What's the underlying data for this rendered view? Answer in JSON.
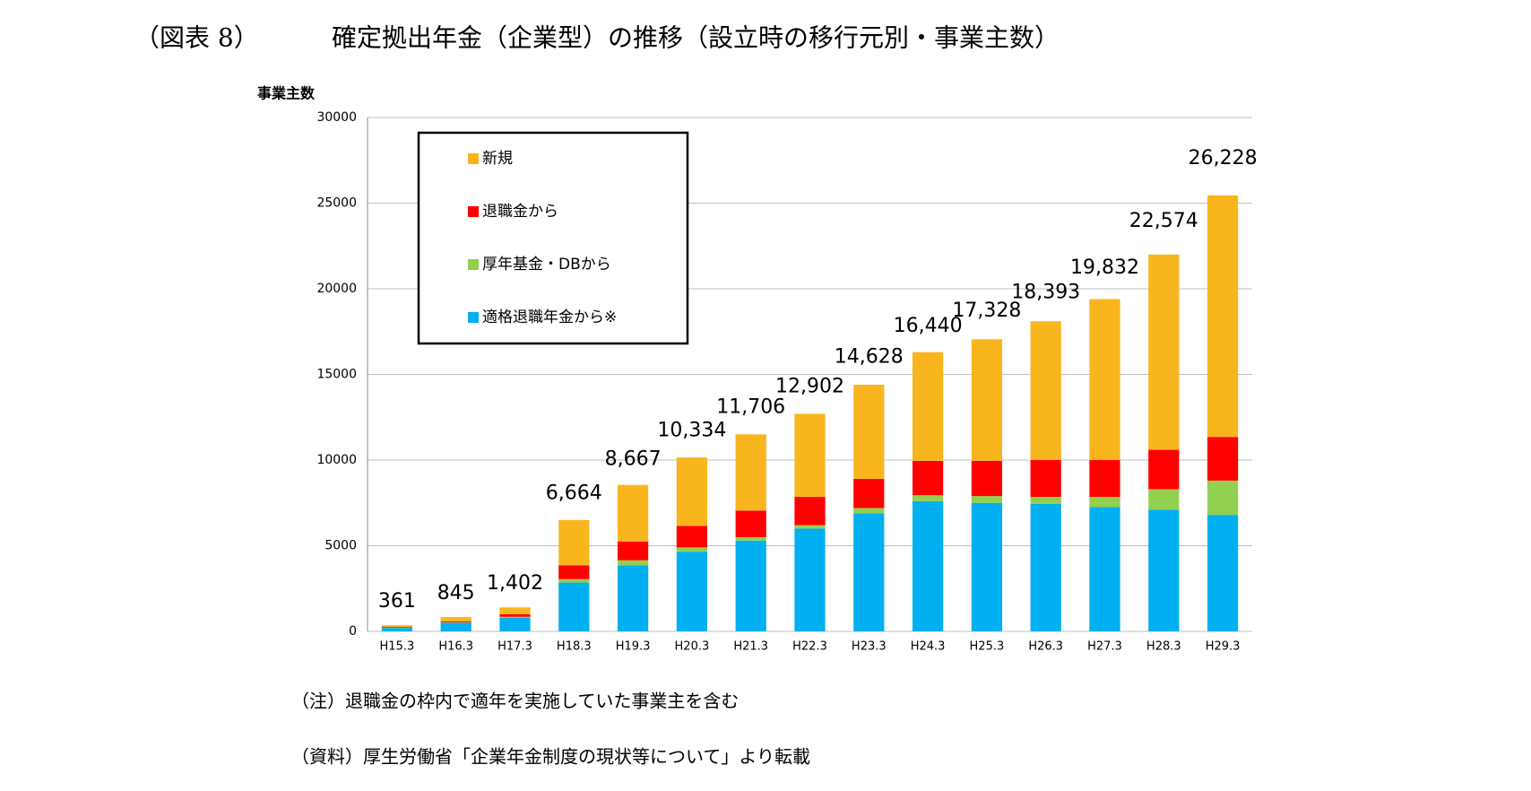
{
  "header": {
    "label": "（図表 8）",
    "title": "確定拠出年金（企業型）の推移（設立時の移行元別・事業主数）"
  },
  "chart_data": {
    "type": "bar",
    "stacked": true,
    "ylabel": "事業主数",
    "categories": [
      "H15.3",
      "H16.3",
      "H17.3",
      "H18.3",
      "H19.3",
      "H20.3",
      "H21.3",
      "H22.3",
      "H23.3",
      "H24.3",
      "H25.3",
      "H26.3",
      "H27.3",
      "H28.3",
      "H29.3"
    ],
    "series": [
      {
        "name": "適格退職年金から※",
        "color": "#00b0f0",
        "values": [
          200,
          500,
          800,
          2850,
          3850,
          4650,
          5300,
          6000,
          6900,
          7600,
          7500,
          7450,
          7250,
          7100,
          6800
        ]
      },
      {
        "name": "厚年基金・DBから",
        "color": "#92d050",
        "values": [
          20,
          30,
          50,
          200,
          300,
          250,
          200,
          200,
          300,
          350,
          400,
          400,
          600,
          1200,
          2000
        ]
      },
      {
        "name": "退職金から",
        "color": "#ff0000",
        "values": [
          40,
          60,
          150,
          800,
          1100,
          1250,
          1550,
          1650,
          1700,
          2000,
          2050,
          2150,
          2150,
          2300,
          2550
        ]
      },
      {
        "name": "新規",
        "color": "#f8b51d",
        "values": [
          100,
          250,
          400,
          2650,
          3300,
          4000,
          4450,
          4850,
          5500,
          6350,
          7100,
          8100,
          9400,
          11400,
          14100
        ]
      }
    ],
    "totals": {
      "values": [
        361,
        845,
        1402,
        6664,
        8667,
        10334,
        11706,
        12902,
        14628,
        16440,
        17328,
        18393,
        19832,
        22574,
        26228
      ],
      "value_labels": [
        "361",
        "845",
        "1,402",
        "6,664",
        "8,667",
        "10,334",
        "11,706",
        "12,902",
        "14,628",
        "16,440",
        "17,328",
        "18,393",
        "19,832",
        "22,574",
        "26,228"
      ]
    },
    "ylim": [
      0,
      30000
    ],
    "yticks": [
      0,
      5000,
      10000,
      15000,
      20000,
      25000,
      30000
    ],
    "grid": true,
    "legend": "top-left"
  },
  "notes": [
    "（注）退職金の枠内で適年を実施していた事業主を含む",
    "（資料）厚生労働省「企業年金制度の現状等について」より転載"
  ]
}
